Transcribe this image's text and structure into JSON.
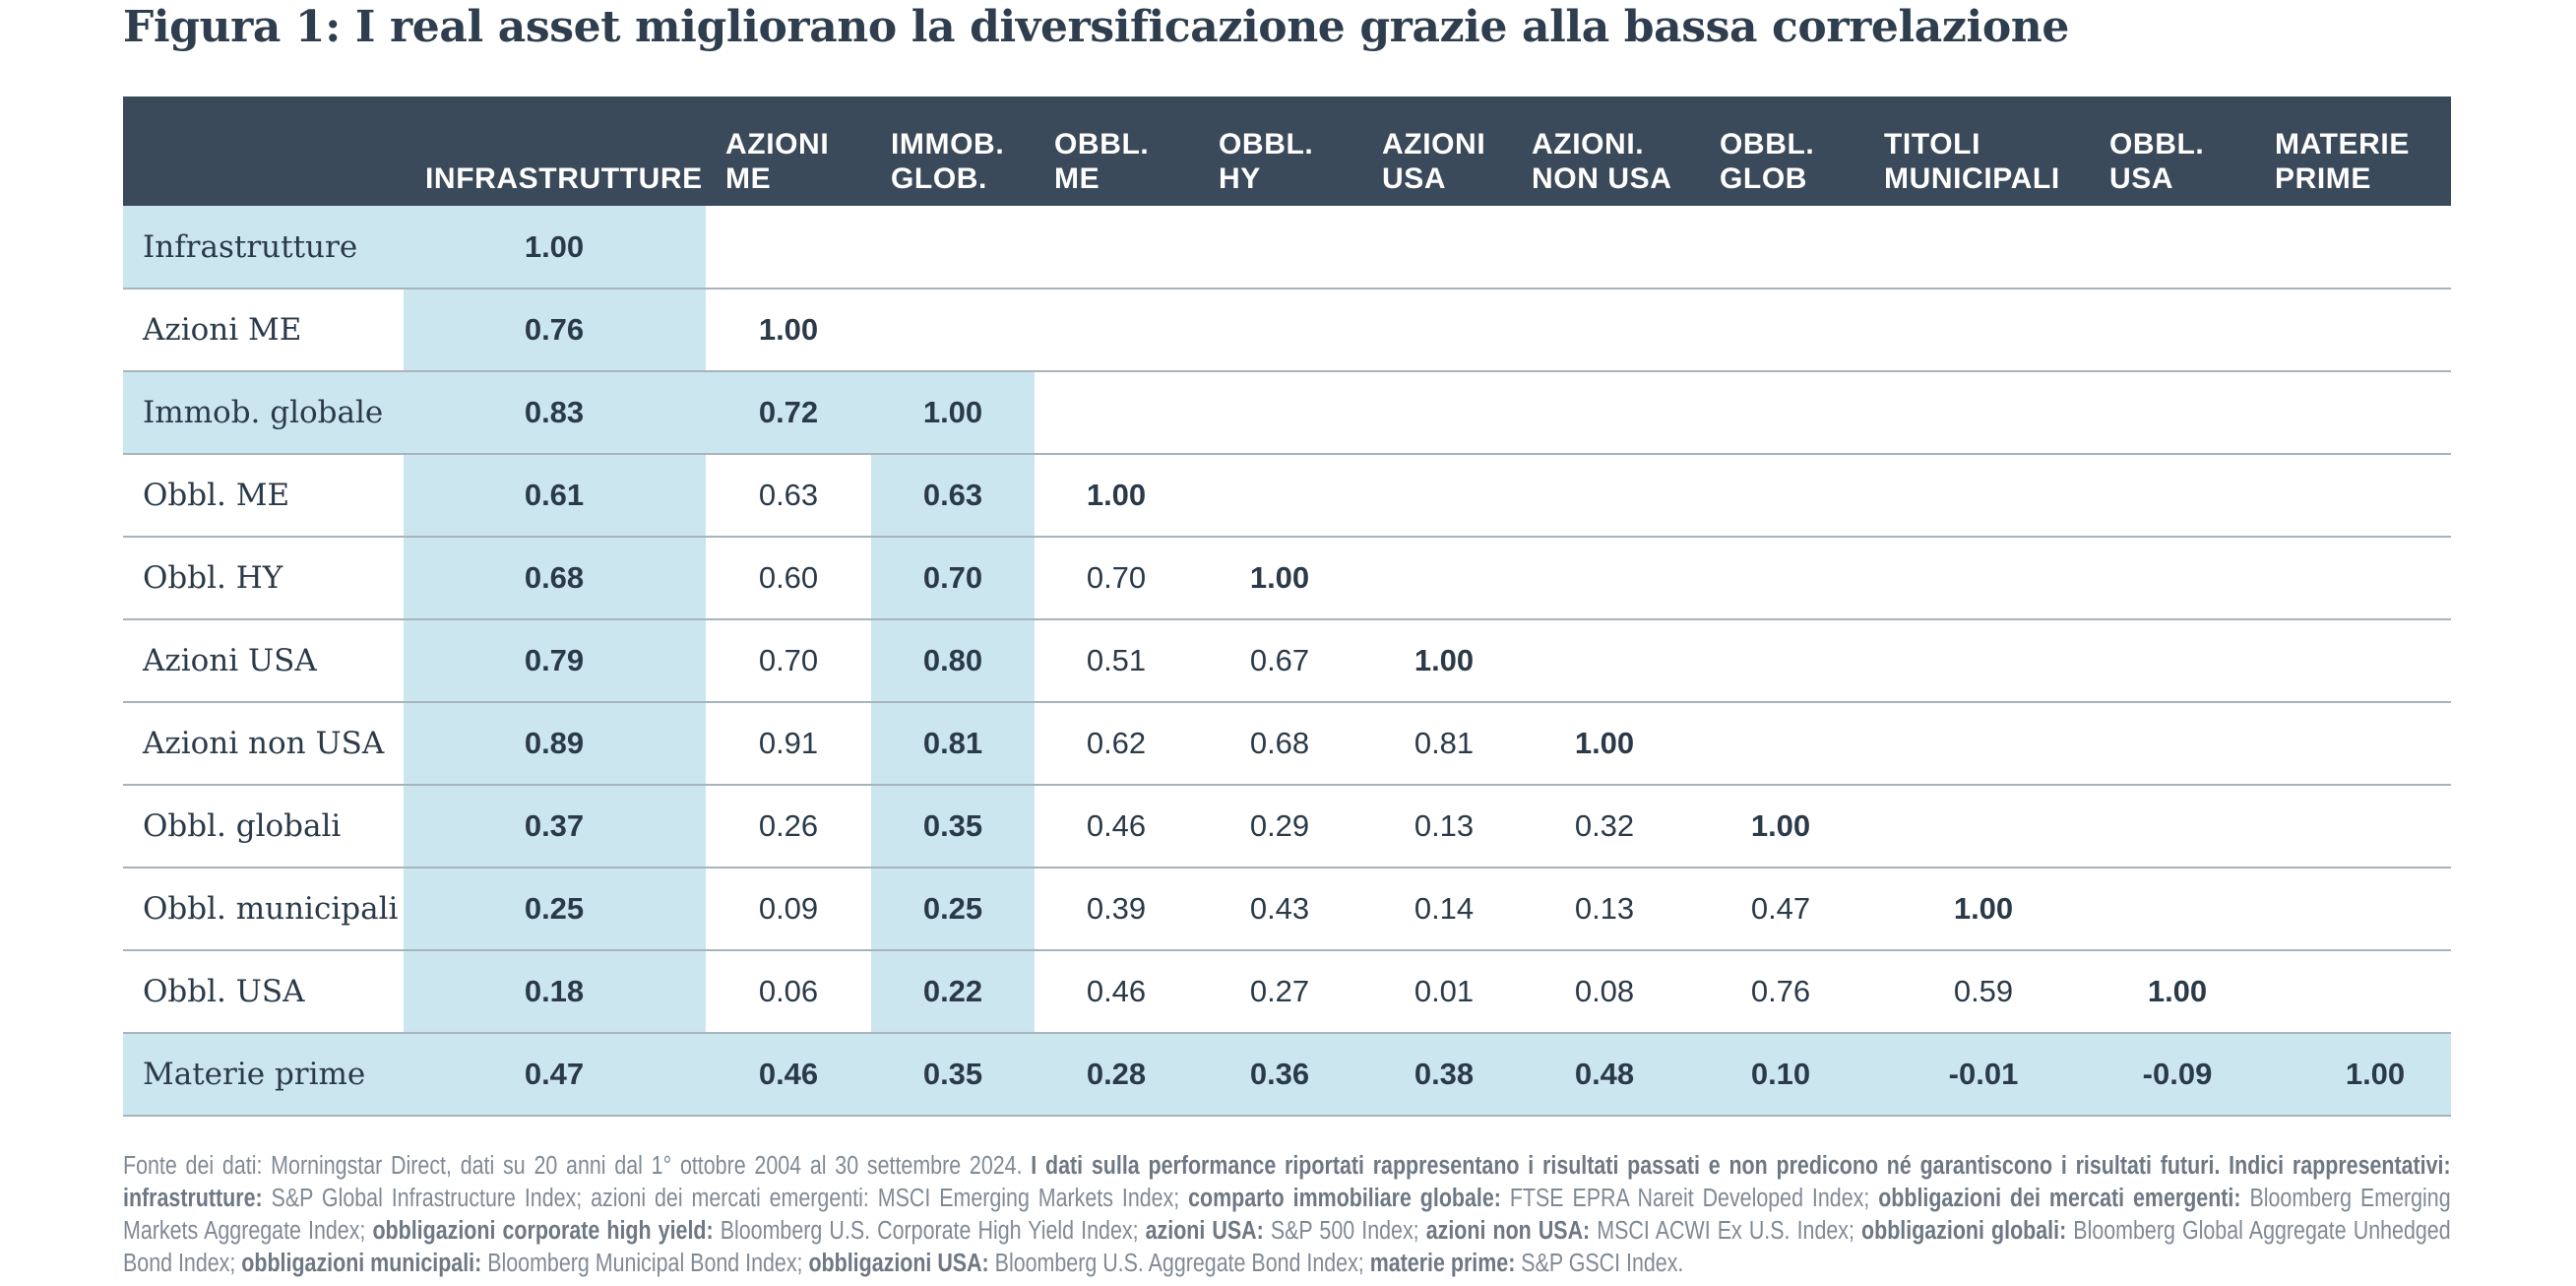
{
  "title": "Figura 1: I real asset migliorano la diversificazione grazie alla bassa correlazione",
  "chart_data": {
    "type": "table",
    "columns": [
      [
        "INFRASTRUTTURE"
      ],
      [
        "AZIONI",
        "ME"
      ],
      [
        "IMMOB.",
        "GLOB."
      ],
      [
        "OBBL.",
        "ME"
      ],
      [
        "OBBL.",
        "HY"
      ],
      [
        "AZIONI",
        "USA"
      ],
      [
        "AZIONI.",
        "NON USA"
      ],
      [
        "OBBL.",
        "GLOB"
      ],
      [
        "TITOLI",
        "MUNICIPALI"
      ],
      [
        "OBBL.",
        "USA"
      ],
      [
        "MATERIE",
        "PRIME"
      ]
    ],
    "rows": [
      "Infrastrutture",
      "Azioni ME",
      "Immob. globale",
      "Obbl. ME",
      "Obbl. HY",
      "Azioni USA",
      "Azioni non USA",
      "Obbl. globali",
      "Obbl. municipali",
      "Obbl. USA",
      "Materie prime"
    ],
    "values": [
      [
        "1.00"
      ],
      [
        "0.76",
        "1.00"
      ],
      [
        "0.83",
        "0.72",
        "1.00"
      ],
      [
        "0.61",
        "0.63",
        "0.63",
        "1.00"
      ],
      [
        "0.68",
        "0.60",
        "0.70",
        "0.70",
        "1.00"
      ],
      [
        "0.79",
        "0.70",
        "0.80",
        "0.51",
        "0.67",
        "1.00"
      ],
      [
        "0.89",
        "0.91",
        "0.81",
        "0.62",
        "0.68",
        "0.81",
        "1.00"
      ],
      [
        "0.37",
        "0.26",
        "0.35",
        "0.46",
        "0.29",
        "0.13",
        "0.32",
        "1.00"
      ],
      [
        "0.25",
        "0.09",
        "0.25",
        "0.39",
        "0.43",
        "0.14",
        "0.13",
        "0.47",
        "1.00"
      ],
      [
        "0.18",
        "0.06",
        "0.22",
        "0.46",
        "0.27",
        "0.01",
        "0.08",
        "0.76",
        "0.59",
        "1.00"
      ],
      [
        "0.47",
        "0.46",
        "0.35",
        "0.28",
        "0.36",
        "0.38",
        "0.48",
        "0.10",
        "-0.01",
        "-0.09",
        "1.00"
      ]
    ],
    "highlighted_rows": [
      "Infrastrutture",
      "Immob. globale",
      "Materie prime"
    ],
    "highlighted_columns": [
      "INFRASTRUTTURE",
      "IMMOB. GLOB."
    ]
  },
  "colors": {
    "header_bg": "#3b4a5a",
    "highlight": "#cce6ef",
    "text": "#2b3a49",
    "footnote": "#7f8a95"
  },
  "footnote": [
    {
      "text": "Fonte dei dati: Morningstar Direct, dati su 20 anni dal 1° ottobre 2004 al 30 settembre 2024. ",
      "bold": false
    },
    {
      "text": "I dati sulla performance riportati rappresentano i risultati passati e non predicono né garantiscono i risultati futuri. Indici rappresentativi: infrastrutture:",
      "bold": true
    },
    {
      "text": " S&P Global Infrastructure Index; azioni dei mercati emergenti: MSCI Emerging Markets Index; ",
      "bold": false
    },
    {
      "text": "comparto immobiliare globale:",
      "bold": true
    },
    {
      "text": " FTSE EPRA Nareit Developed Index; ",
      "bold": false
    },
    {
      "text": "obbligazioni dei mercati emergenti:",
      "bold": true
    },
    {
      "text": " Bloomberg Emerging Markets Aggregate Index; ",
      "bold": false
    },
    {
      "text": "obbligazioni corporate high yield:",
      "bold": true
    },
    {
      "text": " Bloomberg U.S. Corporate High Yield Index; ",
      "bold": false
    },
    {
      "text": "azioni USA:",
      "bold": true
    },
    {
      "text": " S&P 500 Index; ",
      "bold": false
    },
    {
      "text": "azioni non USA:",
      "bold": true
    },
    {
      "text": " MSCI ACWI Ex U.S. Index; ",
      "bold": false
    },
    {
      "text": "obbligazioni globali:",
      "bold": true
    },
    {
      "text": " Bloomberg Global Aggregate Unhedged Bond Index; ",
      "bold": false
    },
    {
      "text": "obbligazioni municipali:",
      "bold": true
    },
    {
      "text": " Bloomberg Municipal Bond Index; ",
      "bold": false
    },
    {
      "text": "obbligazioni USA:",
      "bold": true
    },
    {
      "text": " Bloomberg U.S. Aggregate Bond Index; ",
      "bold": false
    },
    {
      "text": "materie prime:",
      "bold": true
    },
    {
      "text": " S&P GSCI Index.",
      "bold": false
    }
  ]
}
